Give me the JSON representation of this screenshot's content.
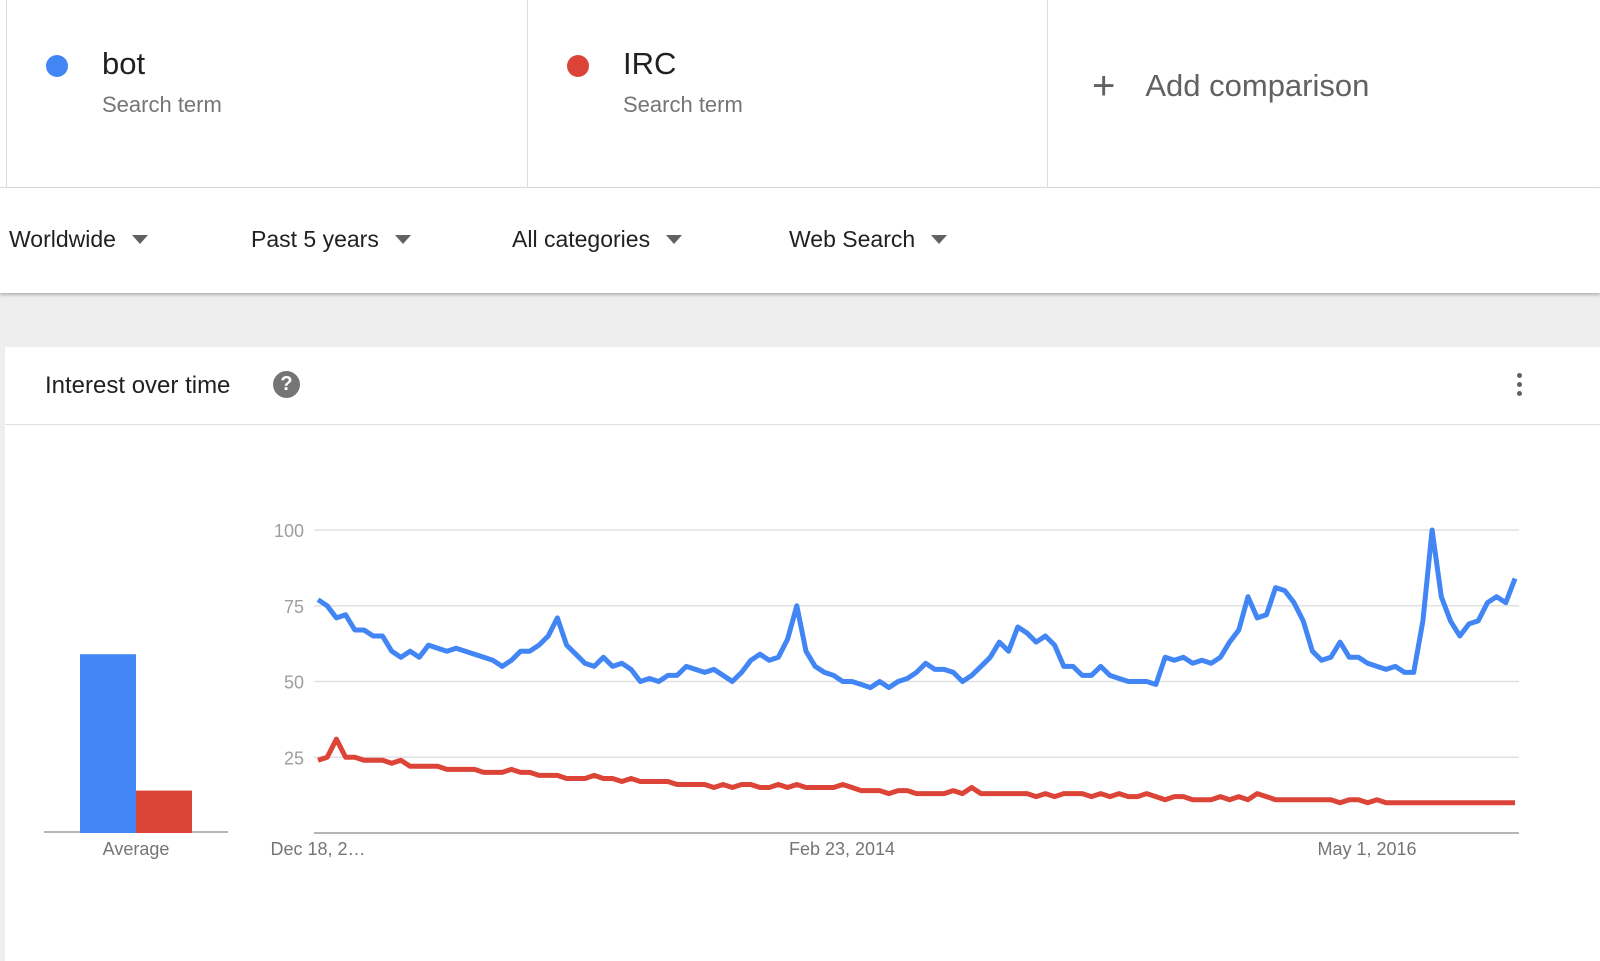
{
  "terms": [
    {
      "name": "bot",
      "subtitle": "Search term",
      "color": "#4285f4"
    },
    {
      "name": "IRC",
      "subtitle": "Search term",
      "color": "#db4437"
    }
  ],
  "add_comparison": {
    "label": "Add comparison",
    "icon": "plus-icon"
  },
  "filters": [
    {
      "label": "Worldwide"
    },
    {
      "label": "Past 5 years"
    },
    {
      "label": "All categories"
    },
    {
      "label": "Web Search"
    }
  ],
  "card": {
    "title": "Interest over time",
    "help_icon": "?",
    "menu_icon": "more-vert-icon"
  },
  "chart_data": {
    "type": "line",
    "title": "Interest over time",
    "ylim": [
      0,
      100
    ],
    "y_ticks": [
      25,
      50,
      75,
      100
    ],
    "y_tick_labels": [
      "25",
      "50",
      "75",
      "100"
    ],
    "x_tick_labels": [
      "Dec 18, 2…",
      "Feb 23, 2014",
      "May 1, 2016"
    ],
    "grid": true,
    "series": [
      {
        "name": "bot",
        "color": "#4285f4",
        "values": [
          77,
          75,
          71,
          72,
          67,
          67,
          65,
          65,
          60,
          58,
          60,
          58,
          62,
          61,
          60,
          61,
          60,
          59,
          58,
          57,
          55,
          57,
          60,
          60,
          62,
          65,
          71,
          62,
          59,
          56,
          55,
          58,
          55,
          56,
          54,
          50,
          51,
          50,
          52,
          52,
          55,
          54,
          53,
          54,
          52,
          50,
          53,
          57,
          59,
          57,
          58,
          64,
          75,
          60,
          55,
          53,
          52,
          50,
          50,
          49,
          48,
          50,
          48,
          50,
          51,
          53,
          56,
          54,
          54,
          53,
          50,
          52,
          55,
          58,
          63,
          60,
          68,
          66,
          63,
          65,
          62,
          55,
          55,
          52,
          52,
          55,
          52,
          51,
          50,
          50,
          50,
          49,
          58,
          57,
          58,
          56,
          57,
          56,
          58,
          63,
          67,
          78,
          71,
          72,
          81,
          80,
          76,
          70,
          60,
          57,
          58,
          63,
          58,
          58,
          56,
          55,
          54,
          55,
          53,
          53,
          70,
          100,
          78,
          70,
          65,
          69,
          70,
          76,
          78,
          76,
          84
        ]
      },
      {
        "name": "IRC",
        "color": "#db4437",
        "values": [
          24,
          25,
          31,
          25,
          25,
          24,
          24,
          24,
          23,
          24,
          22,
          22,
          22,
          22,
          21,
          21,
          21,
          21,
          20,
          20,
          20,
          21,
          20,
          20,
          19,
          19,
          19,
          18,
          18,
          18,
          19,
          18,
          18,
          17,
          18,
          17,
          17,
          17,
          17,
          16,
          16,
          16,
          16,
          15,
          16,
          15,
          16,
          16,
          15,
          15,
          16,
          15,
          16,
          15,
          15,
          15,
          15,
          16,
          15,
          14,
          14,
          14,
          13,
          14,
          14,
          13,
          13,
          13,
          13,
          14,
          13,
          15,
          13,
          13,
          13,
          13,
          13,
          13,
          12,
          13,
          12,
          13,
          13,
          13,
          12,
          13,
          12,
          13,
          12,
          12,
          13,
          12,
          11,
          12,
          12,
          11,
          11,
          11,
          12,
          11,
          12,
          11,
          13,
          12,
          11,
          11,
          11,
          11,
          11,
          11,
          11,
          10,
          11,
          11,
          10,
          11,
          10,
          10,
          10,
          10,
          10,
          10,
          10,
          10,
          10,
          10,
          10,
          10,
          10,
          10,
          10
        ]
      }
    ],
    "average": {
      "label": "Average",
      "values": [
        59,
        14
      ]
    }
  }
}
